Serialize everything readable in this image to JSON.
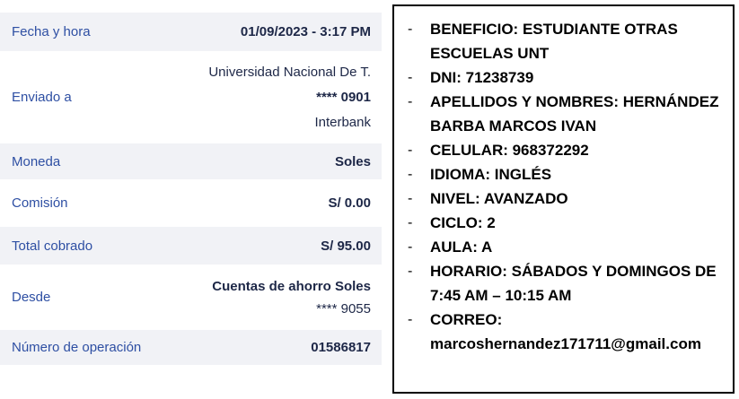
{
  "receipt": {
    "rows": [
      {
        "label": "Fecha y hora",
        "value": "01/09/2023 - 3:17 PM"
      },
      {
        "label": "Enviado a",
        "line1": "Universidad Nacional De T.",
        "line2": "**** 0901",
        "line3": "Interbank"
      },
      {
        "label": "Moneda",
        "value": "Soles"
      },
      {
        "label": "Comisión",
        "value": "S/ 0.00"
      },
      {
        "label": "Total cobrado",
        "value": "S/ 95.00"
      },
      {
        "label": "Desde",
        "line1": "Cuentas de ahorro Soles",
        "line2": "**** 9055"
      },
      {
        "label": "Número de operación",
        "value": "01586817"
      }
    ],
    "colors": {
      "label_blue": "#2e4fa3",
      "value_navy": "#1d2747",
      "muted_blue_gray": "#5d6b87",
      "row_band": "#f1f2f6"
    }
  },
  "note": {
    "border_color": "#000000",
    "items": [
      "BENEFICIO: ESTUDIANTE OTRAS ESCUELAS UNT",
      "DNI: 71238739",
      "APELLIDOS Y NOMBRES: HERNÁNDEZ BARBA MARCOS IVAN",
      "CELULAR: 968372292",
      "IDIOMA: INGLÉS",
      "NIVEL: AVANZADO",
      "CICLO: 2",
      "AULA: A",
      "HORARIO: SÁBADOS Y DOMINGOS DE 7:45 AM – 10:15 AM",
      "CORREO: marcoshernandez171711@gmail.com"
    ]
  }
}
